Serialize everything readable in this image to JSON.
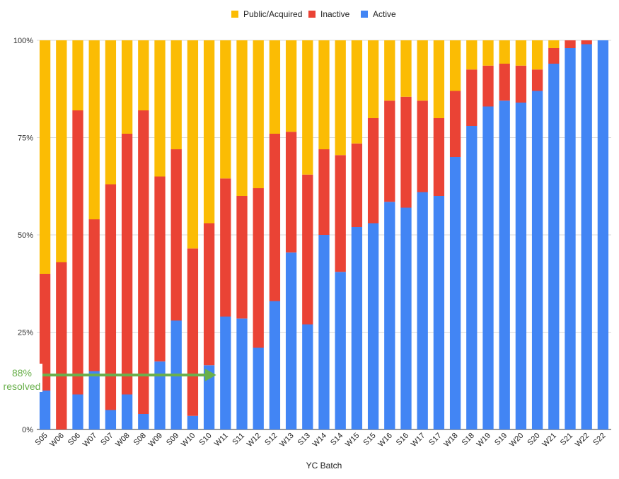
{
  "chart_data": {
    "type": "bar",
    "stacked": true,
    "title": "",
    "xlabel": "YC Batch",
    "ylabel": "",
    "ylim": [
      0,
      100
    ],
    "y_ticks": [
      "0%",
      "25%",
      "50%",
      "75%",
      "100%"
    ],
    "legend_position": "top-center",
    "grid": true,
    "categories": [
      "S05",
      "W06",
      "S06",
      "W07",
      "S07",
      "W08",
      "S08",
      "W09",
      "S09",
      "W10",
      "S10",
      "W11",
      "S11",
      "W12",
      "S12",
      "W13",
      "S13",
      "W14",
      "S14",
      "W15",
      "S15",
      "W16",
      "S16",
      "W17",
      "S17",
      "W18",
      "S18",
      "W19",
      "S19",
      "W20",
      "S20",
      "W21",
      "S21",
      "W22",
      "S22"
    ],
    "series": [
      {
        "name": "Active",
        "color": "#4285f4",
        "values": [
          10,
          0,
          9,
          15,
          5,
          9,
          4,
          17.5,
          28,
          3.5,
          16.5,
          29,
          28.5,
          21,
          33,
          45.5,
          27,
          50,
          40.5,
          52,
          53,
          58.5,
          57,
          61,
          60,
          70,
          78,
          83,
          84.5,
          84,
          87,
          94,
          98,
          99,
          100
        ]
      },
      {
        "name": "Inactive",
        "color": "#ea4335",
        "values": [
          30,
          43,
          73,
          39,
          58,
          67,
          78,
          47.5,
          44,
          43,
          36.5,
          35.5,
          31.5,
          41,
          43,
          31,
          38.5,
          22,
          30,
          21.5,
          27,
          26,
          28.5,
          23.5,
          20,
          17,
          14.5,
          10.5,
          9.5,
          9.5,
          5.5,
          4,
          2,
          1,
          0
        ]
      },
      {
        "name": "Public/Acquired",
        "color": "#fbbc04",
        "values": [
          60,
          57,
          18,
          46,
          37,
          24,
          18,
          35,
          28,
          53.5,
          47,
          35.5,
          40,
          38,
          24,
          23.5,
          34.5,
          28,
          29.5,
          26.5,
          20,
          15.5,
          14.5,
          15.5,
          20,
          13,
          7.5,
          6.5,
          6,
          6.5,
          7.5,
          2,
          0,
          0,
          0
        ]
      }
    ],
    "legend_order": [
      "Public/Acquired",
      "Inactive",
      "Active"
    ],
    "annotation": {
      "lines": [
        "88%",
        "resolved"
      ],
      "color": "#6ab04c",
      "y_value": 14.2,
      "arrow_to_category": "S10"
    }
  }
}
